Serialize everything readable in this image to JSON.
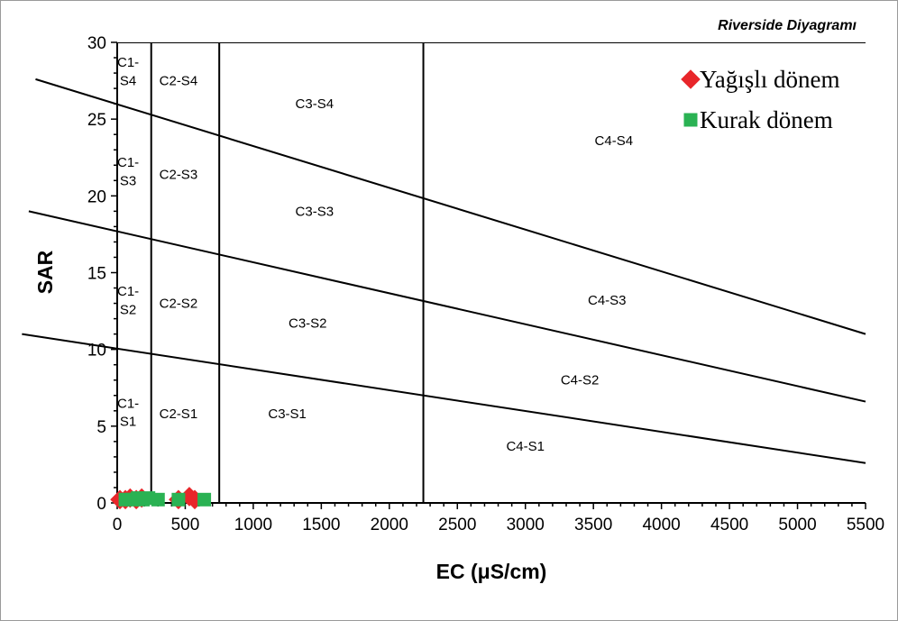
{
  "chart_data": {
    "type": "scatter",
    "title": "Riverside Diyagramı",
    "xlabel": "EC (μS/cm)",
    "ylabel": "SAR",
    "xlim": [
      0,
      5500
    ],
    "ylim": [
      0,
      30
    ],
    "x_ticks": [
      "0",
      "500",
      "1000",
      "1500",
      "2000",
      "2500",
      "3000",
      "3500",
      "4000",
      "4500",
      "5000",
      "5500"
    ],
    "y_ticks": [
      "0",
      "5",
      "10",
      "15",
      "20",
      "25",
      "30"
    ],
    "ec_class_boundaries": [
      250,
      750,
      2250
    ],
    "sar_class_lines": [
      {
        "name": "S1/S2",
        "points": [
          [
            -700,
            11.0
          ],
          [
            5500,
            2.6
          ]
        ]
      },
      {
        "name": "S2/S3",
        "points": [
          [
            -650,
            19.0
          ],
          [
            5500,
            6.6
          ]
        ]
      },
      {
        "name": "S3/S4",
        "points": [
          [
            -600,
            27.6
          ],
          [
            5500,
            11.0
          ]
        ]
      }
    ],
    "legend_position": "top-right",
    "series": [
      {
        "name": "Yağışlı dönem",
        "marker": "diamond",
        "color": "#e8262a",
        "points": [
          [
            20,
            0.1
          ],
          [
            60,
            0.1
          ],
          [
            95,
            0.2
          ],
          [
            140,
            0.1
          ],
          [
            180,
            0.2
          ],
          [
            450,
            0.1
          ],
          [
            530,
            0.3
          ],
          [
            570,
            0.1
          ]
        ]
      },
      {
        "name": "Kurak dönem",
        "marker": "square",
        "color": "#2ab253",
        "points": [
          [
            60,
            0.1
          ],
          [
            110,
            0.1
          ],
          [
            150,
            0.2
          ],
          [
            190,
            0.1
          ],
          [
            230,
            0.2
          ],
          [
            300,
            0.1
          ],
          [
            450,
            0.1
          ],
          [
            640,
            0.1
          ]
        ]
      }
    ],
    "zone_labels": [
      {
        "text": "C1-",
        "x": 80,
        "y": 28.7
      },
      {
        "text": "S4",
        "x": 80,
        "y": 27.5
      },
      {
        "text": "C2-S4",
        "x": 450,
        "y": 27.5
      },
      {
        "text": "C3-S4",
        "x": 1450,
        "y": 26.0
      },
      {
        "text": "C4-S4",
        "x": 3650,
        "y": 23.6
      },
      {
        "text": "C1-",
        "x": 80,
        "y": 22.2
      },
      {
        "text": "S3",
        "x": 80,
        "y": 21.0
      },
      {
        "text": "C2-S3",
        "x": 450,
        "y": 21.4
      },
      {
        "text": "C3-S3",
        "x": 1450,
        "y": 19.0
      },
      {
        "text": "C4-S3",
        "x": 3600,
        "y": 13.2
      },
      {
        "text": "C1-",
        "x": 80,
        "y": 13.8
      },
      {
        "text": "S2",
        "x": 80,
        "y": 12.6
      },
      {
        "text": "C2-S2",
        "x": 450,
        "y": 13.0
      },
      {
        "text": "C3-S2",
        "x": 1400,
        "y": 11.7
      },
      {
        "text": "C4-S2",
        "x": 3400,
        "y": 8.0
      },
      {
        "text": "C1-",
        "x": 80,
        "y": 6.5
      },
      {
        "text": "S1",
        "x": 80,
        "y": 5.3
      },
      {
        "text": "C2-S1",
        "x": 450,
        "y": 5.8
      },
      {
        "text": "C3-S1",
        "x": 1250,
        "y": 5.8
      },
      {
        "text": "C4-S1",
        "x": 3000,
        "y": 3.7
      }
    ]
  }
}
